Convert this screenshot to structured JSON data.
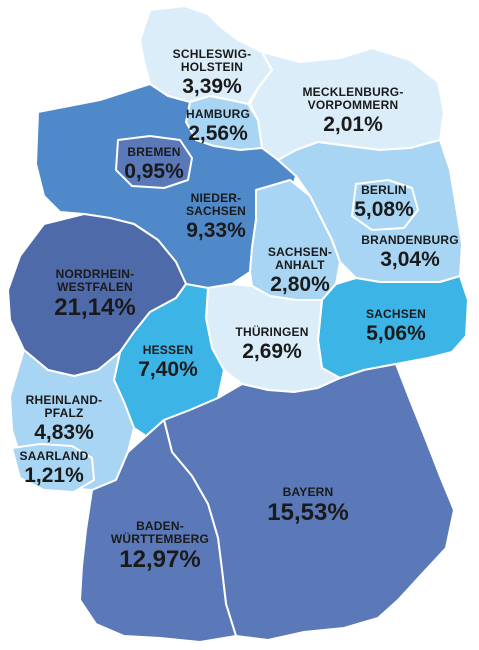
{
  "colors": {
    "lightest": "#dcedfa",
    "light": "#a7d5f3",
    "sky": "#3db4e6",
    "medium": "#4f89c9",
    "medium_dark": "#5b78b9",
    "dark": "#4f6aa8"
  },
  "states": {
    "schleswig_holstein": {
      "name": "SCHLESWIG-\nHOLSTEIN",
      "value": "3,39%"
    },
    "hamburg": {
      "name": "HAMBURG",
      "value": "2,56%"
    },
    "mecklenburg_vorpommern": {
      "name": "MECKLENBURG-\nVORPOMMERN",
      "value": "2,01%"
    },
    "bremen": {
      "name": "BREMEN",
      "value": "0,95%"
    },
    "niedersachsen": {
      "name": "NIEDER-\nSACHSEN",
      "value": "9,33%"
    },
    "berlin": {
      "name": "BERLIN",
      "value": "5,08%"
    },
    "brandenburg": {
      "name": "BRANDENBURG",
      "value": "3,04%"
    },
    "sachsen_anhalt": {
      "name": "SACHSEN-\nANHALT",
      "value": "2,80%"
    },
    "nordrhein_westfalen": {
      "name": "NORDRHEIN-\nWESTFALEN",
      "value": "21,14%"
    },
    "sachsen": {
      "name": "SACHSEN",
      "value": "5,06%"
    },
    "thueringen": {
      "name": "THÜRINGEN",
      "value": "2,69%"
    },
    "hessen": {
      "name": "HESSEN",
      "value": "7,40%"
    },
    "rheinland_pfalz": {
      "name": "RHEINLAND-\nPFALZ",
      "value": "4,83%"
    },
    "saarland": {
      "name": "SAARLAND",
      "value": "1,21%"
    },
    "bayern": {
      "name": "BAYERN",
      "value": "15,53%"
    },
    "baden_wuerttemberg": {
      "name": "BADEN-\nWÜRTTEMBERG",
      "value": "12,97%"
    }
  }
}
